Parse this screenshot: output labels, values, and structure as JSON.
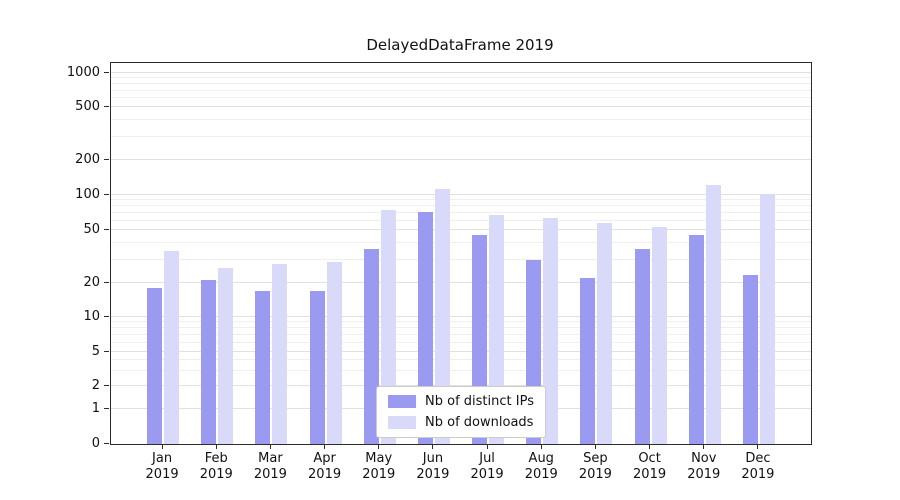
{
  "figure": {
    "title": "DelayedDataFrame 2019"
  },
  "chart_data": {
    "type": "bar",
    "title": "DelayedDataFrame 2019",
    "categories": [
      "Jan 2019",
      "Feb 2019",
      "Mar 2019",
      "Apr 2019",
      "May 2019",
      "Jun 2019",
      "Jul 2019",
      "Aug 2019",
      "Sep 2019",
      "Oct 2019",
      "Nov 2019",
      "Dec 2019"
    ],
    "series": [
      {
        "name": "Nb of distinct IPs",
        "color": "#9a9af1",
        "values": [
          18,
          21,
          17,
          17,
          36,
          72,
          46,
          30,
          22,
          36,
          46,
          23
        ]
      },
      {
        "name": "Nb of downloads",
        "color": "#d9d9fa",
        "values": [
          35,
          26,
          28,
          29,
          75,
          113,
          67,
          63,
          57,
          53,
          122,
          103
        ]
      }
    ],
    "yscale": "symlog",
    "yticks": [
      0,
      1,
      2,
      5,
      10,
      20,
      50,
      100,
      200,
      500,
      1000
    ],
    "ylim": [
      0,
      1000
    ],
    "xlabel": "",
    "ylabel": "",
    "grid": true,
    "legend_position": "lower center"
  }
}
